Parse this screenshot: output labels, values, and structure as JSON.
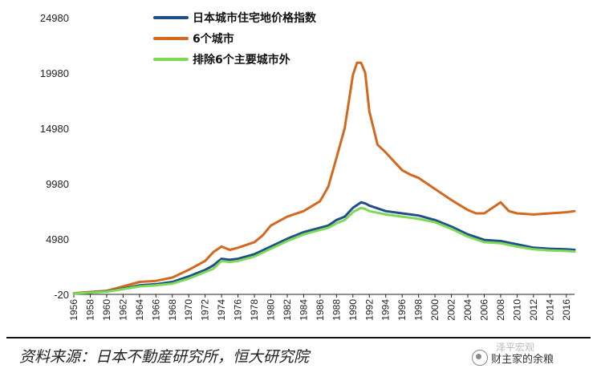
{
  "chart_data": {
    "type": "line",
    "title": "",
    "xlabel": "",
    "ylabel": "",
    "legend_position": "top-left",
    "y_ticks": [
      -20,
      4980,
      9980,
      14980,
      19980,
      24980
    ],
    "ylim": [
      -20,
      24980
    ],
    "xlim": [
      1956,
      2017
    ],
    "x_ticks": [
      1956,
      1958,
      1960,
      1962,
      1964,
      1966,
      1968,
      1970,
      1972,
      1974,
      1976,
      1978,
      1980,
      1982,
      1984,
      1986,
      1988,
      1990,
      1992,
      1994,
      1996,
      1998,
      2000,
      2002,
      2004,
      2006,
      2008,
      2010,
      2012,
      2014,
      2016
    ],
    "grid": false,
    "series": [
      {
        "name": "6个城市",
        "color": "#d2691e",
        "x": [
          1956,
          1958,
          1960,
          1962,
          1964,
          1966,
          1968,
          1970,
          1972,
          1973,
          1974,
          1975,
          1976,
          1978,
          1979,
          1980,
          1982,
          1984,
          1986,
          1987,
          1988,
          1989,
          1990,
          1990.5,
          1991,
          1991.5,
          1992,
          1993,
          1994,
          1996,
          1997,
          1998,
          2000,
          2002,
          2004,
          2005,
          2006,
          2007,
          2008,
          2009,
          2010,
          2012,
          2014,
          2016,
          2017
        ],
        "y": [
          80,
          200,
          300,
          700,
          1100,
          1200,
          1500,
          2200,
          3000,
          3800,
          4300,
          4000,
          4200,
          4700,
          5300,
          6200,
          7000,
          7500,
          8400,
          9700,
          12300,
          15000,
          19800,
          20900,
          20900,
          20000,
          16500,
          13500,
          12800,
          11200,
          10800,
          10500,
          9500,
          8500,
          7600,
          7300,
          7300,
          7800,
          8300,
          7500,
          7300,
          7200,
          7300,
          7400,
          7500
        ]
      },
      {
        "name": "日本城市住宅地价格指数",
        "color": "#1f4e8a",
        "x": [
          1956,
          1958,
          1960,
          1962,
          1964,
          1966,
          1968,
          1970,
          1972,
          1973,
          1974,
          1975,
          1976,
          1978,
          1980,
          1982,
          1984,
          1986,
          1987,
          1988,
          1989,
          1990,
          1991,
          1991.5,
          1992,
          1994,
          1996,
          1998,
          2000,
          2002,
          2004,
          2006,
          2008,
          2010,
          2012,
          2014,
          2016,
          2017
        ],
        "y": [
          60,
          150,
          250,
          500,
          800,
          900,
          1100,
          1600,
          2200,
          2600,
          3200,
          3100,
          3200,
          3600,
          4300,
          5000,
          5600,
          6000,
          6200,
          6700,
          7000,
          7800,
          8300,
          8200,
          8000,
          7500,
          7300,
          7100,
          6700,
          6100,
          5400,
          4900,
          4800,
          4500,
          4200,
          4100,
          4050,
          4000
        ]
      },
      {
        "name": "排除6个主要城市外",
        "color": "#7ed957",
        "x": [
          1956,
          1958,
          1960,
          1962,
          1964,
          1966,
          1968,
          1970,
          1972,
          1973,
          1974,
          1975,
          1976,
          1978,
          1980,
          1982,
          1984,
          1986,
          1987,
          1988,
          1989,
          1990,
          1991,
          1991.5,
          1992,
          1994,
          1996,
          1998,
          2000,
          2002,
          2004,
          2006,
          2008,
          2010,
          2012,
          2014,
          2016,
          2017
        ],
        "y": [
          50,
          130,
          220,
          450,
          700,
          800,
          950,
          1400,
          2000,
          2300,
          3000,
          2900,
          3000,
          3400,
          4100,
          4800,
          5400,
          5800,
          6000,
          6400,
          6700,
          7400,
          7800,
          7700,
          7500,
          7200,
          7000,
          6800,
          6500,
          5900,
          5200,
          4700,
          4600,
          4300,
          4050,
          3950,
          3900,
          3850
        ]
      }
    ]
  },
  "source_text": "资料来源：日本不動産研究所，恒大研究院",
  "watermark": {
    "line1": "泽平宏观",
    "line2": "财主家的余粮"
  }
}
